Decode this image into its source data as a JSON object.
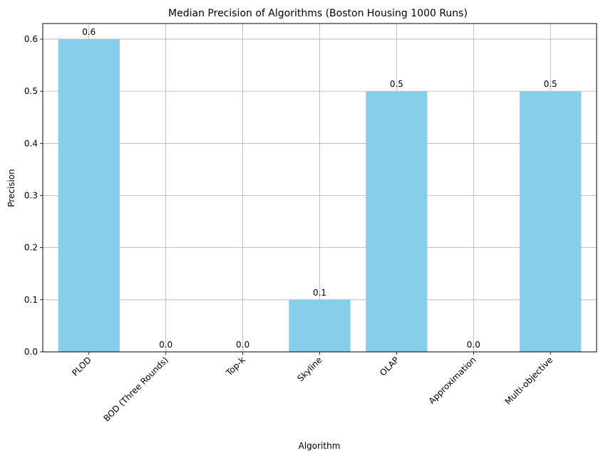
{
  "chart_data": {
    "type": "bar",
    "title": "Median Precision of Algorithms (Boston Housing 1000 Runs)",
    "xlabel": "Algorithm",
    "ylabel": "Precision",
    "categories": [
      "PLOD",
      "BOD (Three Rounds)",
      "Top-k",
      "Skyline",
      "OLAP",
      "Approximation",
      "Multi-objective"
    ],
    "values": [
      0.6,
      0.0,
      0.0,
      0.1,
      0.5,
      0.0,
      0.5
    ],
    "data_labels": [
      "0.6",
      "0.0",
      "0.0",
      "0.1",
      "0.5",
      "0.0",
      "0.5"
    ],
    "ylim": [
      0,
      0.63
    ],
    "yticks": [
      0.0,
      0.1,
      0.2,
      0.3,
      0.4,
      0.5,
      0.6
    ],
    "ytick_labels": [
      "0.0",
      "0.1",
      "0.2",
      "0.3",
      "0.4",
      "0.5",
      "0.6"
    ],
    "grid": true,
    "bar_color": "#87CEEB",
    "grid_color": "#b0b0b0"
  }
}
